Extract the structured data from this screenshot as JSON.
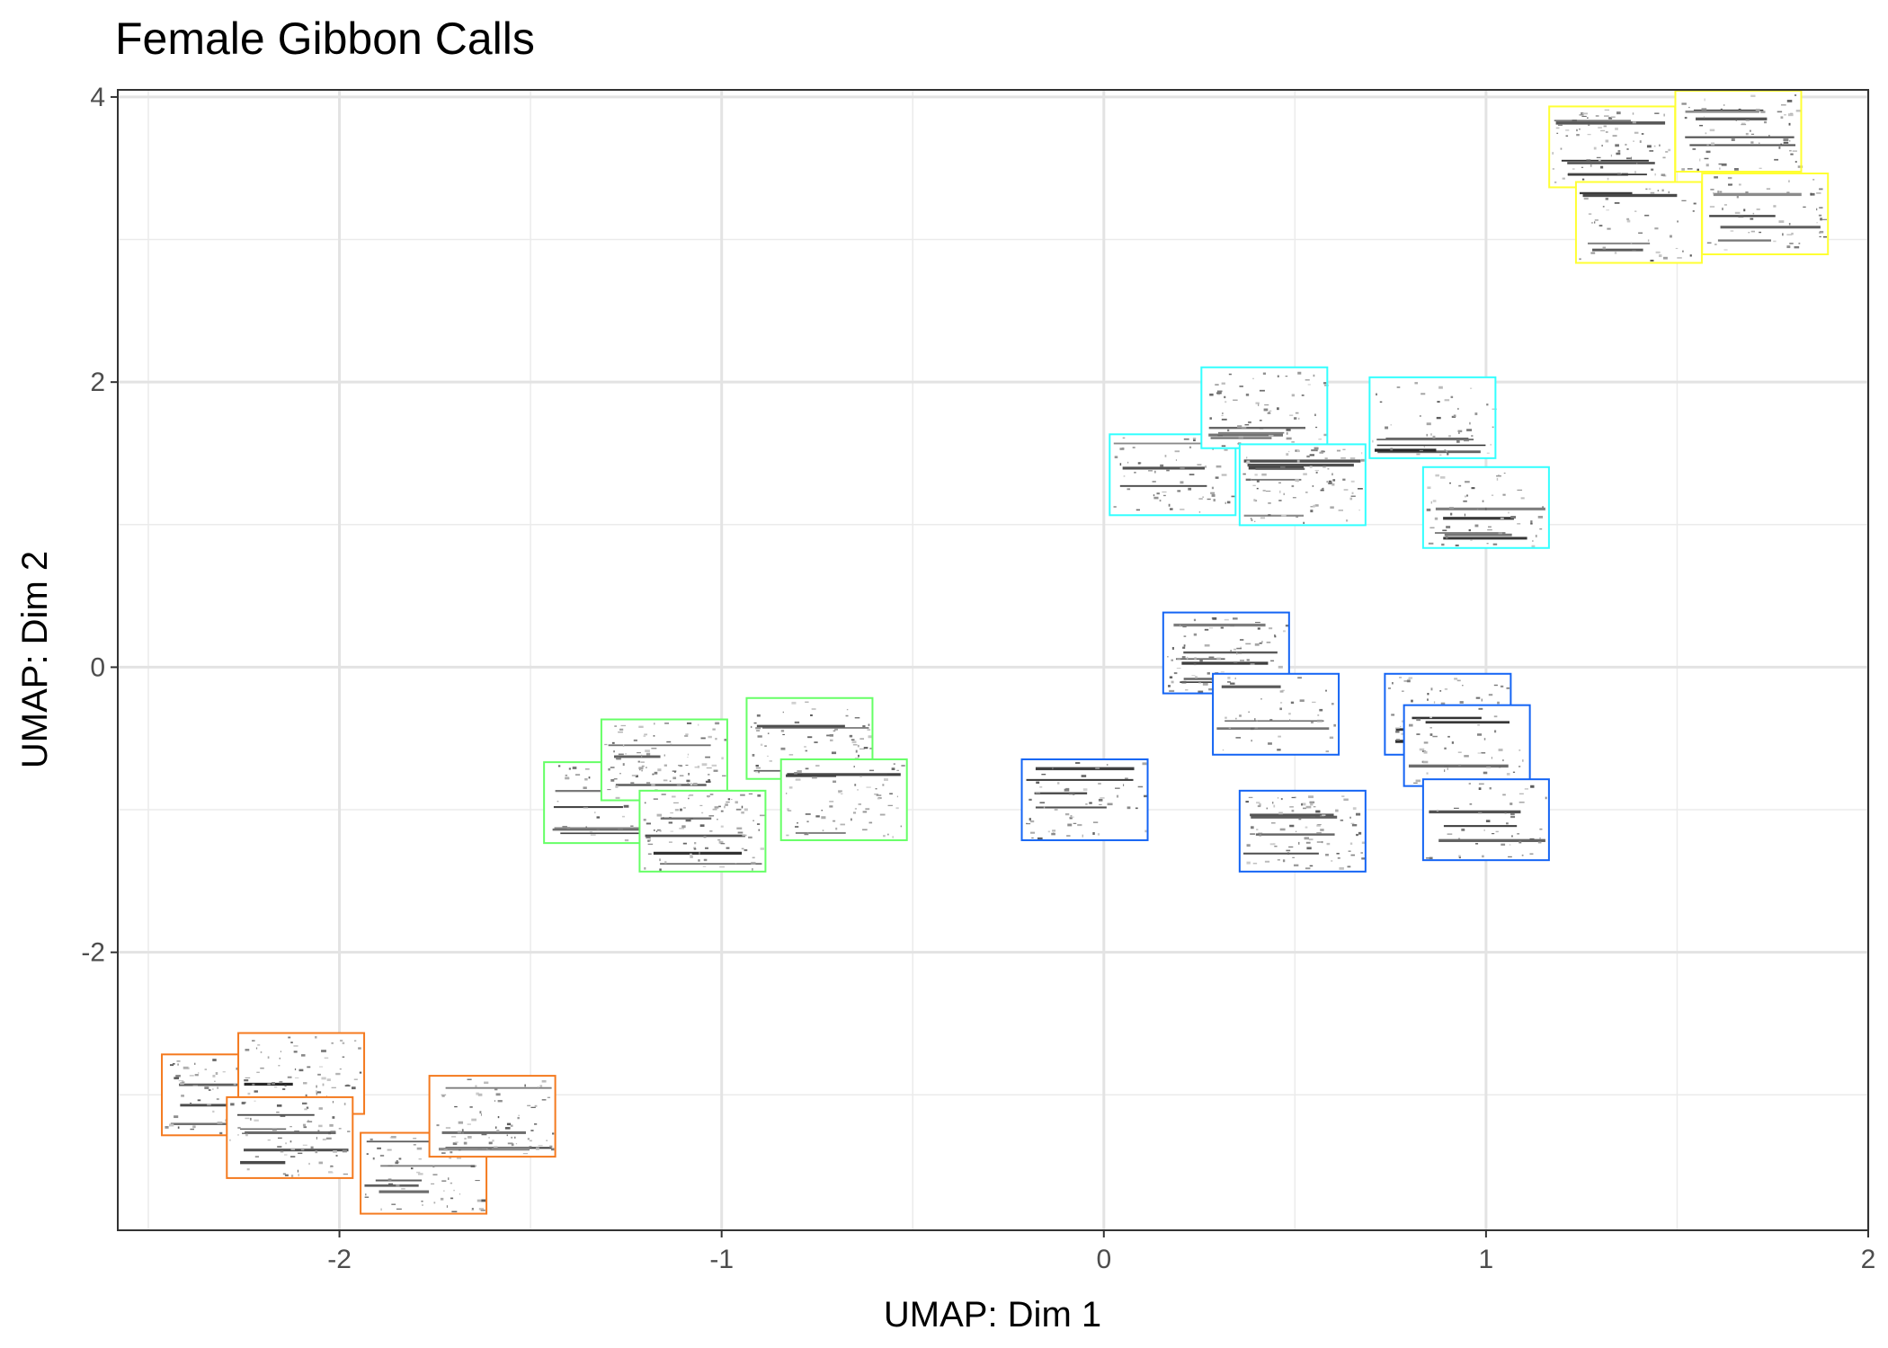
{
  "chart_data": {
    "type": "scatter",
    "title": "Female Gibbon Calls",
    "xlabel": "UMAP: Dim 1",
    "ylabel": "UMAP: Dim 2",
    "xlim": [
      -2.58,
      2.0
    ],
    "ylim": [
      -3.95,
      4.05
    ],
    "x_ticks": [
      -2,
      -1,
      0,
      1,
      2
    ],
    "y_ticks": [
      -2,
      0,
      2,
      4
    ],
    "grid": true,
    "legend": "none",
    "marker": "spectrogram thumbnail",
    "series": [
      {
        "color": "#F47A1F",
        "points": [
          {
            "x": -2.3,
            "y": -3.0
          },
          {
            "x": -2.1,
            "y": -2.85
          },
          {
            "x": -2.13,
            "y": -3.3
          },
          {
            "x": -1.78,
            "y": -3.55
          },
          {
            "x": -1.6,
            "y": -3.15
          }
        ]
      },
      {
        "color": "#66FF66",
        "points": [
          {
            "x": -1.3,
            "y": -0.95
          },
          {
            "x": -1.15,
            "y": -0.65
          },
          {
            "x": -1.05,
            "y": -1.15
          },
          {
            "x": -0.77,
            "y": -0.5
          },
          {
            "x": -0.68,
            "y": -0.93
          }
        ]
      },
      {
        "color": "#1464F4",
        "points": [
          {
            "x": -0.05,
            "y": -0.93
          },
          {
            "x": 0.32,
            "y": 0.1
          },
          {
            "x": 0.45,
            "y": -0.33
          },
          {
            "x": 0.52,
            "y": -1.15
          },
          {
            "x": 0.9,
            "y": -0.33
          },
          {
            "x": 0.95,
            "y": -0.55
          },
          {
            "x": 1.0,
            "y": -1.07
          }
        ]
      },
      {
        "color": "#33FFFF",
        "points": [
          {
            "x": 0.18,
            "y": 1.35
          },
          {
            "x": 0.42,
            "y": 1.82
          },
          {
            "x": 0.52,
            "y": 1.28
          },
          {
            "x": 0.86,
            "y": 1.75
          },
          {
            "x": 1.0,
            "y": 1.12
          }
        ]
      },
      {
        "color": "#FFFF33",
        "points": [
          {
            "x": 1.33,
            "y": 3.65
          },
          {
            "x": 1.4,
            "y": 3.12
          },
          {
            "x": 1.66,
            "y": 3.76
          },
          {
            "x": 1.73,
            "y": 3.18
          }
        ]
      }
    ]
  }
}
